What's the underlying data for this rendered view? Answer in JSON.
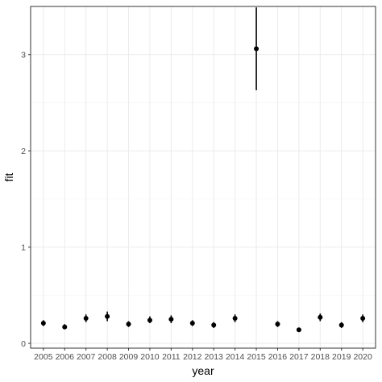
{
  "chart_data": {
    "type": "scatter",
    "title": "",
    "xlabel": "year",
    "ylabel": "fit",
    "x_categories": [
      "2005",
      "2006",
      "2007",
      "2008",
      "2009",
      "2010",
      "2011",
      "2012",
      "2013",
      "2014",
      "2015",
      "2016",
      "2017",
      "2018",
      "2019",
      "2020"
    ],
    "y_ticks": [
      0,
      1,
      2,
      3
    ],
    "ylim": [
      -0.05,
      3.5
    ],
    "grid": true,
    "points": [
      {
        "x": "2005",
        "y": 0.21,
        "lower": 0.18,
        "upper": 0.24
      },
      {
        "x": "2006",
        "y": 0.17,
        "lower": 0.15,
        "upper": 0.2
      },
      {
        "x": "2007",
        "y": 0.26,
        "lower": 0.22,
        "upper": 0.3
      },
      {
        "x": "2008",
        "y": 0.28,
        "lower": 0.23,
        "upper": 0.33
      },
      {
        "x": "2009",
        "y": 0.2,
        "lower": 0.17,
        "upper": 0.23
      },
      {
        "x": "2010",
        "y": 0.24,
        "lower": 0.21,
        "upper": 0.28
      },
      {
        "x": "2011",
        "y": 0.25,
        "lower": 0.21,
        "upper": 0.29
      },
      {
        "x": "2012",
        "y": 0.21,
        "lower": 0.18,
        "upper": 0.24
      },
      {
        "x": "2013",
        "y": 0.19,
        "lower": 0.16,
        "upper": 0.22
      },
      {
        "x": "2014",
        "y": 0.26,
        "lower": 0.22,
        "upper": 0.3
      },
      {
        "x": "2015",
        "y": 3.06,
        "lower": 2.63,
        "upper": 3.49
      },
      {
        "x": "2016",
        "y": 0.2,
        "lower": 0.17,
        "upper": 0.23
      },
      {
        "x": "2017",
        "y": 0.14,
        "lower": 0.13,
        "upper": 0.15
      },
      {
        "x": "2018",
        "y": 0.27,
        "lower": 0.23,
        "upper": 0.31
      },
      {
        "x": "2019",
        "y": 0.19,
        "lower": 0.16,
        "upper": 0.22
      },
      {
        "x": "2020",
        "y": 0.26,
        "lower": 0.22,
        "upper": 0.3
      }
    ],
    "colors": {
      "panel_border": "#333333",
      "grid_major": "#ebebeb",
      "grid_minor": "#f5f5f5",
      "point": "#000000",
      "tick_text": "#4d4d4d"
    }
  }
}
